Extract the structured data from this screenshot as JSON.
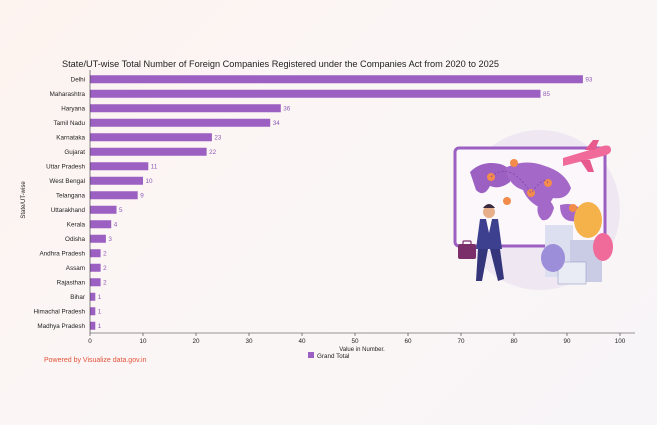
{
  "chart_data": {
    "type": "bar",
    "orientation": "horizontal",
    "title": "State/UT-wise Total Number of Foreign Companies Registered under the Companies Act from 2020 to 2025",
    "xlabel": "Value in Number.",
    "ylabel": "State/UT-wise",
    "xlim": [
      0,
      100
    ],
    "xticks": [
      0,
      10,
      20,
      30,
      40,
      50,
      60,
      70,
      80,
      90,
      100
    ],
    "categories": [
      "Delhi",
      "Maharashtra",
      "Haryana",
      "Tamil Nadu",
      "Karnataka",
      "Gujarat",
      "Uttar Pradesh",
      "West Bengal",
      "Telangana",
      "Uttarakhand",
      "Kerala",
      "Odisha",
      "Andhra Pradesh",
      "Assam",
      "Rajasthan",
      "Bihar",
      "Himachal Pradesh",
      "Madhya Pradesh"
    ],
    "series": [
      {
        "name": "Grand Total",
        "values": [
          93,
          85,
          36,
          34,
          23,
          22,
          11,
          10,
          9,
          5,
          4,
          3,
          2,
          2,
          2,
          1,
          1,
          1
        ]
      }
    ],
    "legend": "bottom-center",
    "grid": false,
    "colors": {
      "bar": "#9c5fc2",
      "value_label": "#8e5bb5"
    }
  },
  "footer": "Powered by Visualize data.gov.in",
  "illustration": "businessman-world-map-illustration"
}
